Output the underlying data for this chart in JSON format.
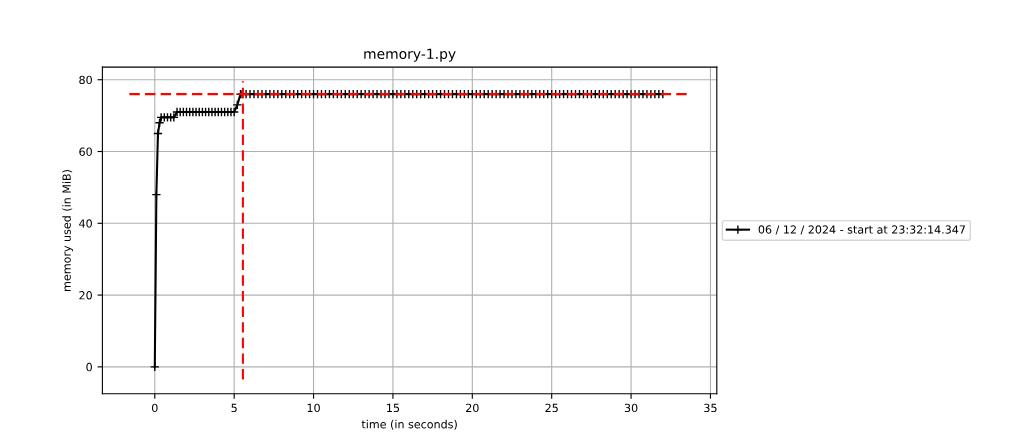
{
  "chart_data": {
    "type": "line",
    "title": "memory-1.py",
    "xlabel": "time (in seconds)",
    "ylabel": "memory used (in MiB)",
    "xlim": [
      -3.3,
      35.4
    ],
    "ylim": [
      -7.5,
      83.5
    ],
    "xticks": [
      0,
      5,
      10,
      15,
      20,
      25,
      30,
      35
    ],
    "yticks": [
      0,
      20,
      40,
      60,
      80
    ],
    "grid": true,
    "legend": "right",
    "series": [
      {
        "name": "06 / 12 / 2024 - start at 23:32:14.347",
        "color": "#000000",
        "marker": "cross",
        "line_style": "solid",
        "x": [
          0,
          0.1,
          0.2,
          0.3,
          0.4,
          0.6,
          0.8,
          1.0,
          1.2,
          1.4,
          1.6,
          1.8,
          2.0,
          2.2,
          2.4,
          2.6,
          2.8,
          3.0,
          3.2,
          3.4,
          3.6,
          3.8,
          4.0,
          4.2,
          4.4,
          4.6,
          4.8,
          5.0,
          5.2,
          5.4,
          5.5,
          5.75,
          6,
          6.25,
          6.5,
          6.75,
          7,
          7.25,
          7.5,
          7.75,
          8,
          8.25,
          8.5,
          8.75,
          9,
          9.25,
          9.5,
          9.75,
          10,
          10.25,
          10.5,
          10.75,
          11,
          11.25,
          11.5,
          11.75,
          12,
          12.25,
          12.5,
          12.75,
          13,
          13.25,
          13.5,
          13.75,
          14,
          14.25,
          14.5,
          14.75,
          15,
          15.25,
          15.5,
          15.75,
          16,
          16.25,
          16.5,
          16.75,
          17,
          17.25,
          17.5,
          17.75,
          18,
          18.25,
          18.5,
          18.75,
          19,
          19.25,
          19.5,
          19.75,
          20,
          20.25,
          20.5,
          20.75,
          21,
          21.25,
          21.5,
          21.75,
          22,
          22.25,
          22.5,
          22.75,
          23,
          23.25,
          23.5,
          23.75,
          24,
          24.25,
          24.5,
          24.75,
          25,
          25.25,
          25.5,
          25.75,
          26,
          26.25,
          26.5,
          26.75,
          27,
          27.25,
          27.5,
          27.75,
          28,
          28.25,
          28.5,
          28.75,
          29,
          29.25,
          29.5,
          29.75,
          30,
          30.25,
          30.5,
          30.75,
          31,
          31.25,
          31.5,
          31.75,
          32
        ],
        "values": [
          0,
          48,
          65,
          68,
          69.5,
          69.5,
          69.5,
          69.5,
          69.5,
          71,
          71,
          71,
          71,
          71,
          71,
          71,
          71,
          71,
          71,
          71,
          71,
          71,
          71,
          71,
          71,
          71,
          71,
          71,
          73,
          76,
          76,
          76,
          76,
          76,
          76,
          76,
          76,
          76,
          76,
          76,
          76,
          76,
          76,
          76,
          76,
          76,
          76,
          76,
          76,
          76,
          76,
          76,
          76,
          76,
          76,
          76,
          76,
          76,
          76,
          76,
          76,
          76,
          76,
          76,
          76,
          76,
          76,
          76,
          76,
          76,
          76,
          76,
          76,
          76,
          76,
          76,
          76,
          76,
          76,
          76,
          76,
          76,
          76,
          76,
          76,
          76,
          76,
          76,
          76,
          76,
          76,
          76,
          76,
          76,
          76,
          76,
          76,
          76,
          76,
          76,
          76,
          76,
          76,
          76,
          76,
          76,
          76,
          76,
          76,
          76,
          76,
          76,
          76,
          76,
          76,
          76,
          76,
          76,
          76,
          76,
          76,
          76,
          76,
          76,
          76,
          76,
          76,
          76,
          76,
          76,
          76,
          76,
          76,
          76,
          76,
          76,
          76
        ]
      },
      {
        "color": "#ff0000",
        "marker": "none",
        "line_style": "dashed",
        "x": [
          -1.6,
          33.6
        ],
        "values": [
          76,
          76
        ]
      },
      {
        "color": "#ff0000",
        "marker": "none",
        "line_style": "dashed",
        "x": [
          5.55,
          5.55
        ],
        "values": [
          -3.5,
          79.6
        ]
      }
    ]
  }
}
